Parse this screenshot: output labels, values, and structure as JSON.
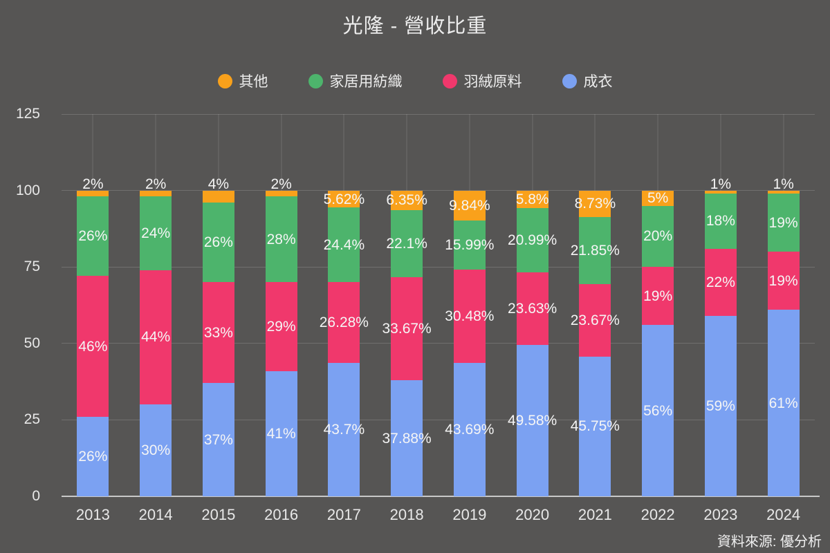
{
  "title": "光隆 - 營收比重",
  "source_note": "資料來源: 優分析",
  "colors": {
    "background": "#565554",
    "grid": "rgba(255,255,255,0.16)",
    "axis_line": "#C9C9C9",
    "text": "#EDEDED",
    "data_label": "#F5F5F5",
    "other": "#F9A11B",
    "home_textile": "#4DB46C",
    "down_material": "#F0386C",
    "garment": "#7BA1F2"
  },
  "legend": {
    "items": [
      {
        "key": "other",
        "label": "其他",
        "color": "#F9A11B"
      },
      {
        "key": "home-textile",
        "label": "家居用紡織",
        "color": "#4DB46C"
      },
      {
        "key": "down-material",
        "label": "羽絨原料",
        "color": "#F0386C"
      },
      {
        "key": "garment",
        "label": "成衣",
        "color": "#7BA1F2"
      }
    ]
  },
  "chart_data": {
    "type": "bar",
    "stacked": true,
    "title": "光隆 - 營收比重",
    "xlabel": "",
    "ylabel": "",
    "ylim": [
      0,
      125
    ],
    "y_ticks": [
      0,
      25,
      50,
      75,
      100,
      125
    ],
    "grid": true,
    "legend_position": "top",
    "categories": [
      "2013",
      "2014",
      "2015",
      "2016",
      "2017",
      "2018",
      "2019",
      "2020",
      "2021",
      "2022",
      "2023",
      "2024"
    ],
    "series": [
      {
        "key": "garment",
        "name": "成衣",
        "color": "#7BA1F2",
        "values": [
          26,
          30,
          37,
          41,
          43.7,
          37.88,
          43.69,
          49.58,
          45.75,
          56,
          59,
          61
        ],
        "labels": [
          "26%",
          "30%",
          "37%",
          "41%",
          "43.7%",
          "37.88%",
          "43.69%",
          "49.58%",
          "45.75%",
          "56%",
          "59%",
          "61%"
        ]
      },
      {
        "key": "down-material",
        "name": "羽絨原料",
        "color": "#F0386C",
        "values": [
          46,
          44,
          33,
          29,
          26.28,
          33.67,
          30.48,
          23.63,
          23.67,
          19,
          22,
          19
        ],
        "labels": [
          "46%",
          "44%",
          "33%",
          "29%",
          "26.28%",
          "33.67%",
          "30.48%",
          "23.63%",
          "23.67%",
          "19%",
          "22%",
          "19%"
        ]
      },
      {
        "key": "home-textile",
        "name": "家居用紡織",
        "color": "#4DB46C",
        "values": [
          26,
          24,
          26,
          28,
          24.4,
          22.1,
          15.99,
          20.99,
          21.85,
          20,
          18,
          19
        ],
        "labels": [
          "26%",
          "24%",
          "26%",
          "28%",
          "24.4%",
          "22.1%",
          "15.99%",
          "20.99%",
          "21.85%",
          "20%",
          "18%",
          "19%"
        ]
      },
      {
        "key": "other",
        "name": "其他",
        "color": "#F9A11B",
        "values": [
          2,
          2,
          4,
          2,
          5.62,
          6.35,
          9.84,
          5.8,
          8.73,
          5,
          1,
          1
        ],
        "labels": [
          "2%",
          "2%",
          "4%",
          "2%",
          "5.62%",
          "6.35%",
          "9.84%",
          "5.8%",
          "8.73%",
          "5%",
          "1%",
          "1%"
        ]
      }
    ]
  }
}
